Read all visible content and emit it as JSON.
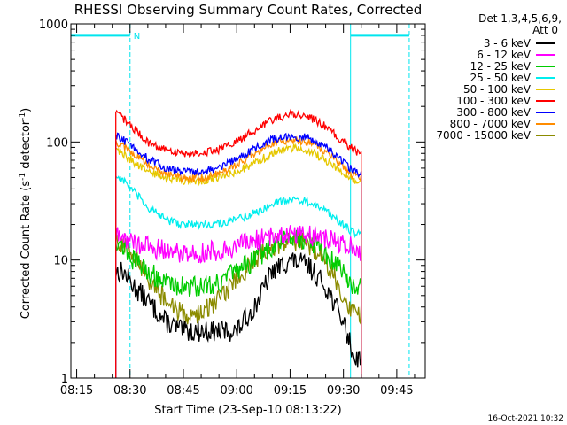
{
  "chart_data": {
    "type": "line",
    "title": "RHESSI Observing Summary Count Rates, Corrected",
    "xlabel": "Start Time (23-Sep-10 08:13:22)",
    "ylabel": "Corrected Count Rate (s⁻¹ detector⁻¹)",
    "y_scale": "log",
    "ylim": [
      1,
      1000
    ],
    "xlim": [
      "08:13:22",
      "09:53:00"
    ],
    "x_ticks": [
      "08:15",
      "08:30",
      "08:45",
      "09:00",
      "09:15",
      "09:30",
      "09:45"
    ],
    "y_ticks": [
      "1",
      "10",
      "100",
      "1000"
    ],
    "grid": false,
    "legend_position": "right",
    "legend_header": [
      "Det 1,3,4,5,6,9,",
      "Att 0"
    ],
    "footer_date": "16-Oct-2021 10:32",
    "flag_bars": {
      "color": "#00e5ee",
      "annotation": "N",
      "level": 800,
      "segments": [
        [
          "08:13:22",
          "08:30:00"
        ],
        [
          "09:32:00",
          "09:48:30"
        ]
      ],
      "bar_boundaries": [
        "08:13:22",
        "09:32:00"
      ],
      "dashed_boundaries": [
        "08:30:00",
        "09:48:30"
      ]
    },
    "series": [
      {
        "name": "3 - 6 keV",
        "color": "#000000",
        "x": [
          "08:26:00",
          "08:28:00",
          "08:31:00",
          "08:35:00",
          "08:40:00",
          "08:45:00",
          "08:50:00",
          "08:55:00",
          "09:00:00",
          "09:05:00",
          "09:10:00",
          "09:15:00",
          "09:20:00",
          "09:25:00",
          "09:30:00",
          "09:33:00",
          "09:35:00"
        ],
        "values": [
          8,
          8,
          6,
          4.5,
          3,
          2.5,
          2.5,
          2.5,
          2.5,
          4,
          8,
          10,
          9,
          6,
          3,
          1.5,
          1.5
        ]
      },
      {
        "name": "6 - 12 keV",
        "color": "#ff00ff",
        "x": [
          "08:26:00",
          "08:28:00",
          "08:31:00",
          "08:35:00",
          "08:40:00",
          "08:45:00",
          "08:50:00",
          "08:55:00",
          "09:00:00",
          "09:05:00",
          "09:10:00",
          "09:15:00",
          "09:20:00",
          "09:25:00",
          "09:30:00",
          "09:33:00",
          "09:35:00"
        ],
        "values": [
          16,
          15.5,
          14,
          13,
          12,
          11.5,
          11.5,
          12,
          13,
          14.5,
          16,
          17,
          16.5,
          15,
          13.5,
          12.5,
          12
        ]
      },
      {
        "name": "12 - 25 keV",
        "color": "#00cc00",
        "x": [
          "08:26:00",
          "08:28:00",
          "08:31:00",
          "08:35:00",
          "08:40:00",
          "08:45:00",
          "08:50:00",
          "08:55:00",
          "09:00:00",
          "09:05:00",
          "09:10:00",
          "09:15:00",
          "09:20:00",
          "09:25:00",
          "09:30:00",
          "09:33:00",
          "09:35:00"
        ],
        "values": [
          15,
          13,
          10,
          8,
          6.5,
          6,
          6,
          6.5,
          8,
          10,
          13,
          16,
          15,
          11,
          8,
          6,
          6
        ]
      },
      {
        "name": "25 - 50 keV",
        "color": "#00eeee",
        "x": [
          "08:26:00",
          "08:28:00",
          "08:31:00",
          "08:35:00",
          "08:40:00",
          "08:45:00",
          "08:50:00",
          "08:55:00",
          "09:00:00",
          "09:05:00",
          "09:10:00",
          "09:15:00",
          "09:20:00",
          "09:25:00",
          "09:30:00",
          "09:33:00",
          "09:35:00"
        ],
        "values": [
          52,
          48,
          38,
          28,
          22,
          20,
          20,
          20.5,
          22,
          25,
          30,
          33,
          31,
          26,
          20,
          17,
          16.5
        ]
      },
      {
        "name": "50 - 100 keV",
        "color": "#e6c800",
        "x": [
          "08:26:00",
          "08:28:00",
          "08:31:00",
          "08:35:00",
          "08:40:00",
          "08:45:00",
          "08:50:00",
          "08:55:00",
          "09:00:00",
          "09:05:00",
          "09:10:00",
          "09:15:00",
          "09:20:00",
          "09:25:00",
          "09:30:00",
          "09:33:00",
          "09:35:00"
        ],
        "values": [
          88,
          80,
          68,
          56,
          50,
          47,
          47,
          50,
          56,
          66,
          80,
          90,
          85,
          70,
          55,
          48,
          46
        ]
      },
      {
        "name": "100 - 300 keV",
        "color": "#ff0000",
        "x": [
          "08:26:00",
          "08:28:00",
          "08:31:00",
          "08:35:00",
          "08:40:00",
          "08:45:00",
          "08:50:00",
          "08:55:00",
          "09:00:00",
          "09:05:00",
          "09:10:00",
          "09:15:00",
          "09:20:00",
          "09:25:00",
          "09:30:00",
          "09:33:00",
          "09:35:00"
        ],
        "values": [
          175,
          160,
          130,
          100,
          85,
          80,
          81,
          86,
          100,
          125,
          155,
          172,
          165,
          135,
          100,
          85,
          80
        ]
      },
      {
        "name": "300 - 800 keV",
        "color": "#0000ff",
        "x": [
          "08:26:00",
          "08:28:00",
          "08:31:00",
          "08:35:00",
          "08:40:00",
          "08:45:00",
          "08:50:00",
          "08:55:00",
          "09:00:00",
          "09:05:00",
          "09:10:00",
          "09:15:00",
          "09:20:00",
          "09:25:00",
          "09:30:00",
          "09:33:00",
          "09:35:00"
        ],
        "values": [
          112,
          105,
          90,
          72,
          60,
          56,
          56,
          60,
          72,
          88,
          105,
          112,
          108,
          90,
          68,
          56,
          54
        ]
      },
      {
        "name": "800 - 7000 keV",
        "color": "#ff8c00",
        "x": [
          "08:26:00",
          "08:28:00",
          "08:31:00",
          "08:35:00",
          "08:40:00",
          "08:45:00",
          "08:50:00",
          "08:55:00",
          "09:00:00",
          "09:05:00",
          "09:10:00",
          "09:15:00",
          "09:20:00",
          "09:25:00",
          "09:30:00",
          "09:33:00",
          "09:35:00"
        ],
        "values": [
          100,
          93,
          80,
          64,
          54,
          50,
          50,
          54,
          64,
          80,
          97,
          105,
          100,
          84,
          63,
          52,
          50
        ]
      },
      {
        "name": "7000 - 15000 keV",
        "color": "#8b8b00",
        "x": [
          "08:26:00",
          "08:28:00",
          "08:31:00",
          "08:35:00",
          "08:40:00",
          "08:45:00",
          "08:50:00",
          "08:55:00",
          "09:00:00",
          "09:05:00",
          "09:10:00",
          "09:15:00",
          "09:20:00",
          "09:25:00",
          "09:30:00",
          "09:33:00",
          "09:35:00"
        ],
        "values": [
          15,
          14,
          11,
          7,
          4.5,
          3.5,
          3.5,
          4.5,
          7,
          10,
          13,
          15,
          14,
          10,
          5,
          3.5,
          3.5
        ]
      }
    ]
  }
}
